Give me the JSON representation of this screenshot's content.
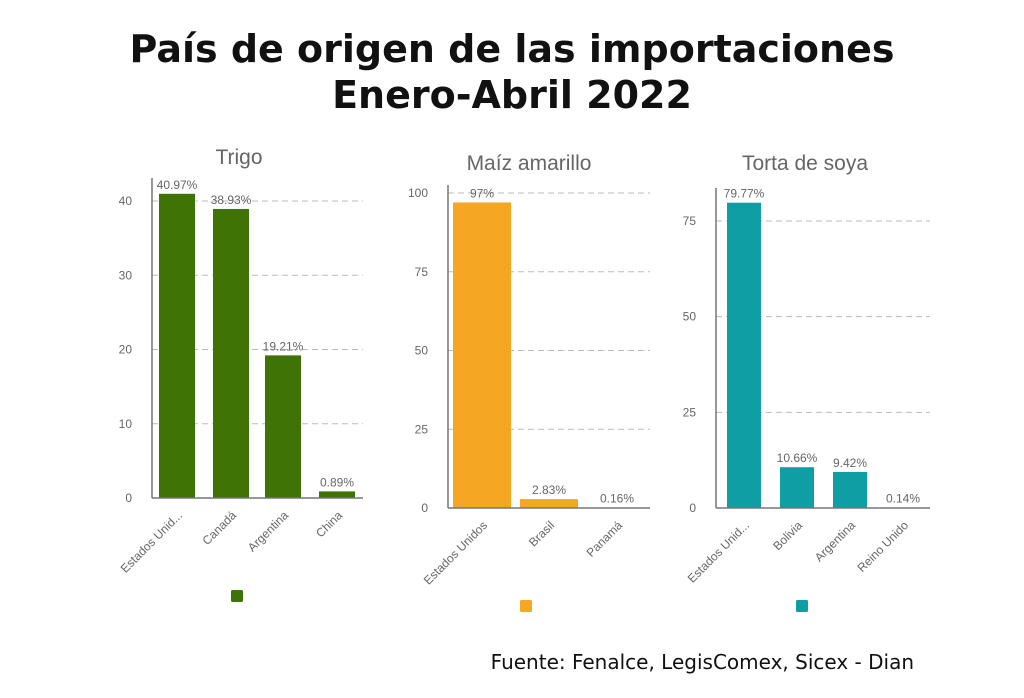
{
  "header": {
    "title_line1": "País de origen de las importaciones",
    "title_line2": "Enero-Abril 2022"
  },
  "source": "Fuente: Fenalce, LegisComex, Sicex - Dian",
  "chart_data": [
    {
      "type": "bar",
      "title": "Trigo",
      "color": "#3f7306",
      "categories": [
        "Estados Unid...",
        "Canadá",
        "Argentina",
        "China"
      ],
      "values": [
        40.97,
        38.93,
        19.21,
        0.89
      ],
      "data_labels": [
        "40.97%",
        "38.93%",
        "19.21%",
        "0.89%"
      ],
      "yticks": [
        0,
        10,
        20,
        30,
        40
      ],
      "ylim": [
        0,
        43
      ],
      "grid": true,
      "legend": "bottom"
    },
    {
      "type": "bar",
      "title": "Maíz amarillo",
      "color": "#f5a623",
      "categories": [
        "Estados Unidos",
        "Brasil",
        "Panamá"
      ],
      "values": [
        97,
        2.83,
        0.16
      ],
      "data_labels": [
        "97%",
        "2.83%",
        "0.16%"
      ],
      "yticks": [
        0,
        25,
        50,
        75,
        100
      ],
      "ylim": [
        0,
        102
      ],
      "grid": true,
      "legend": "bottom"
    },
    {
      "type": "bar",
      "title": "Torta de soya",
      "color": "#0f9ea3",
      "categories": [
        "Estados Unid...",
        "Bolivia",
        "Argentina",
        "Reino Unido"
      ],
      "values": [
        79.77,
        10.66,
        9.42,
        0.14
      ],
      "data_labels": [
        "79.77%",
        "10.66%",
        "9.42%",
        "0.14%"
      ],
      "yticks": [
        0,
        25,
        50,
        75
      ],
      "ylim": [
        0,
        83
      ],
      "grid": true,
      "legend": "bottom"
    }
  ]
}
